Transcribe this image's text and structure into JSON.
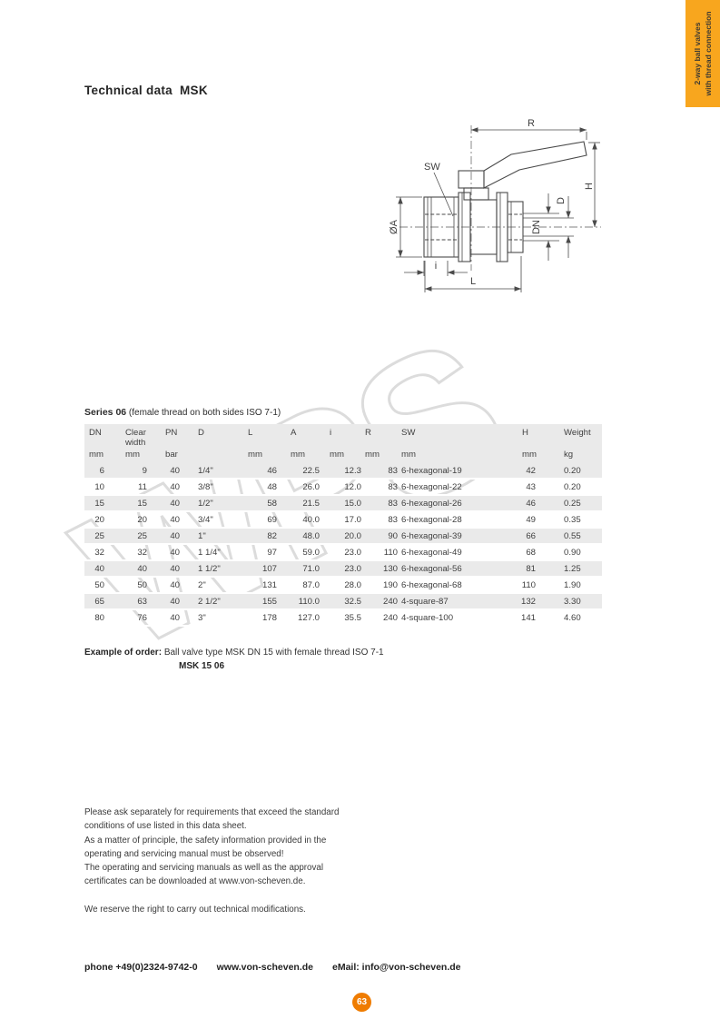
{
  "page": {
    "title_prefix": "Technical data",
    "title_code": "MSK"
  },
  "side_tab": {
    "line1": "2-way ball valves",
    "line2": "with thread connection",
    "bg_color": "#F8A61E"
  },
  "watermark": {
    "text": "WPS"
  },
  "drawing": {
    "labels": {
      "r": "R",
      "sw": "SW",
      "h": "H",
      "d": "D",
      "dn": "DN",
      "dia_a": "ØA",
      "i": "i",
      "l": "L"
    }
  },
  "series": {
    "name": "Series 06",
    "desc": "(female thread on both sides ISO 7-1)"
  },
  "table": {
    "headers": [
      "DN",
      "Clear width",
      "PN",
      "D",
      "L",
      "A",
      "i",
      "R",
      "SW",
      "H",
      "Weight"
    ],
    "units": [
      "mm",
      "mm",
      "bar",
      "",
      "mm",
      "mm",
      "mm",
      "mm",
      "mm",
      "mm",
      "kg"
    ],
    "rows": [
      [
        "6",
        "9",
        "40",
        "1/4\"",
        "46",
        "22.5",
        "12.3",
        "83",
        "6-hexagonal-19",
        "42",
        "0.20"
      ],
      [
        "10",
        "11",
        "40",
        "3/8\"",
        "48",
        "26.0",
        "12.0",
        "83",
        "6-hexagonal-22",
        "43",
        "0.20"
      ],
      [
        "15",
        "15",
        "40",
        "1/2\"",
        "58",
        "21.5",
        "15.0",
        "83",
        "6-hexagonal-26",
        "46",
        "0.25"
      ],
      [
        "20",
        "20",
        "40",
        "3/4\"",
        "69",
        "40.0",
        "17.0",
        "83",
        "6-hexagonal-28",
        "49",
        "0.35"
      ],
      [
        "25",
        "25",
        "40",
        "1\"",
        "82",
        "48.0",
        "20.0",
        "90",
        "6-hexagonal-39",
        "66",
        "0.55"
      ],
      [
        "32",
        "32",
        "40",
        "1 1/4\"",
        "97",
        "59.0",
        "23.0",
        "110",
        "6-hexagonal-49",
        "68",
        "0.90"
      ],
      [
        "40",
        "40",
        "40",
        "1 1/2\"",
        "107",
        "71.0",
        "23.0",
        "130",
        "6-hexagonal-56",
        "81",
        "1.25"
      ],
      [
        "50",
        "50",
        "40",
        "2\"",
        "131",
        "87.0",
        "28.0",
        "190",
        "6-hexagonal-68",
        "110",
        "1.90"
      ],
      [
        "65",
        "63",
        "40",
        "2 1/2\"",
        "155",
        "110.0",
        "32.5",
        "240",
        "4-square-87",
        "132",
        "3.30"
      ],
      [
        "80",
        "76",
        "40",
        "3\"",
        "178",
        "127.0",
        "35.5",
        "240",
        "4-square-100",
        "141",
        "4.60"
      ]
    ]
  },
  "order_example": {
    "label": "Example of order:",
    "text": "Ball valve type MSK DN 15 with female thread ISO 7-1",
    "code": "MSK 15 06"
  },
  "notes": {
    "lines": [
      "Please ask separately for requirements that exceed the standard",
      "conditions of use listed in this data sheet.",
      "As a matter of principle, the safety information provided in the",
      "operating and servicing manual must be observed!",
      "The operating and servicing manuals as well as the approval",
      "certificates can be downloaded at www.von-scheven.de."
    ],
    "reserve": "We reserve the right to carry out technical modifications."
  },
  "footer": {
    "phone": "phone +49(0)2324-9742-0",
    "web": "www.von-scheven.de",
    "email": "eMail: info@von-scheven.de",
    "page_number": "63"
  },
  "colors": {
    "tab_orange": "#F8A61E",
    "badge_orange": "#EF7C00",
    "table_band": "#EAEAEA",
    "watermark_gray": "#D7D7D7"
  }
}
